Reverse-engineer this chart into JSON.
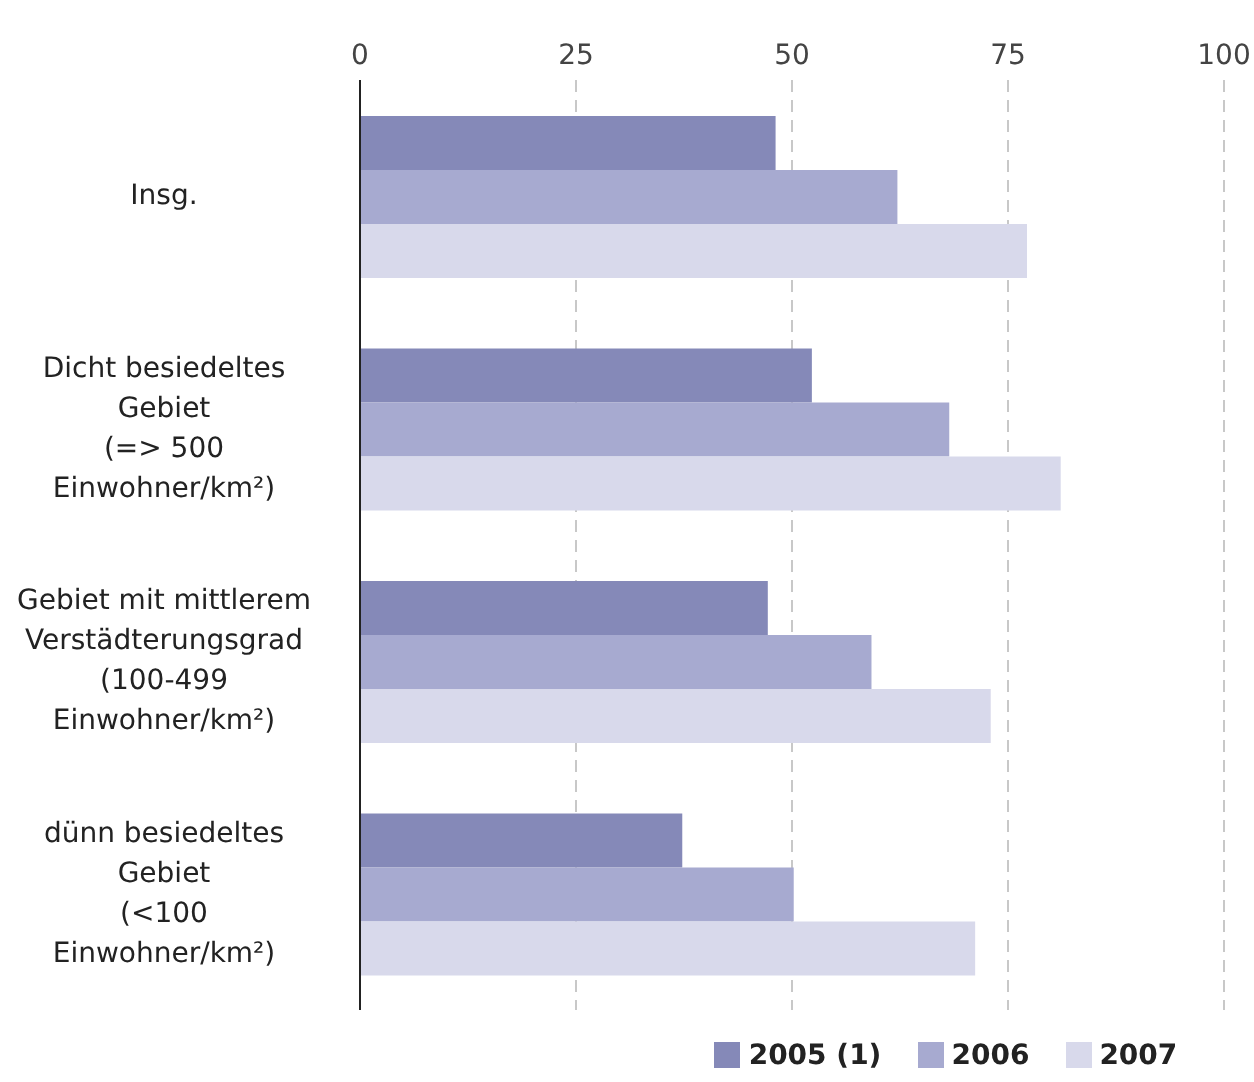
{
  "chart_data": {
    "type": "bar",
    "orientation": "horizontal",
    "categories": [
      "Insg.",
      "Dicht besiedeltes\nGebiet\n(=> 500\nEinwohner/km²)",
      "Gebiet mit mittlerem\nVerstädterungsgrad\n(100-499\nEinwohner/km²)",
      "dünn besiedeltes\nGebiet\n(<100\nEinwohner/km²)"
    ],
    "series": [
      {
        "name": "2005 (1)",
        "color": "#8589b8",
        "values": [
          48.1,
          52.3,
          47.2,
          37.3
        ]
      },
      {
        "name": "2006",
        "color": "#a7aad0",
        "values": [
          62.2,
          68.2,
          59.2,
          50.2
        ]
      },
      {
        "name": "2007",
        "color": "#d8d9eb",
        "values": [
          77.2,
          81.1,
          73.0,
          71.2
        ]
      }
    ],
    "xlim": [
      0,
      100
    ],
    "xticks": [
      0,
      25,
      50,
      75,
      100
    ],
    "grid": "x",
    "legend": "bottom"
  }
}
